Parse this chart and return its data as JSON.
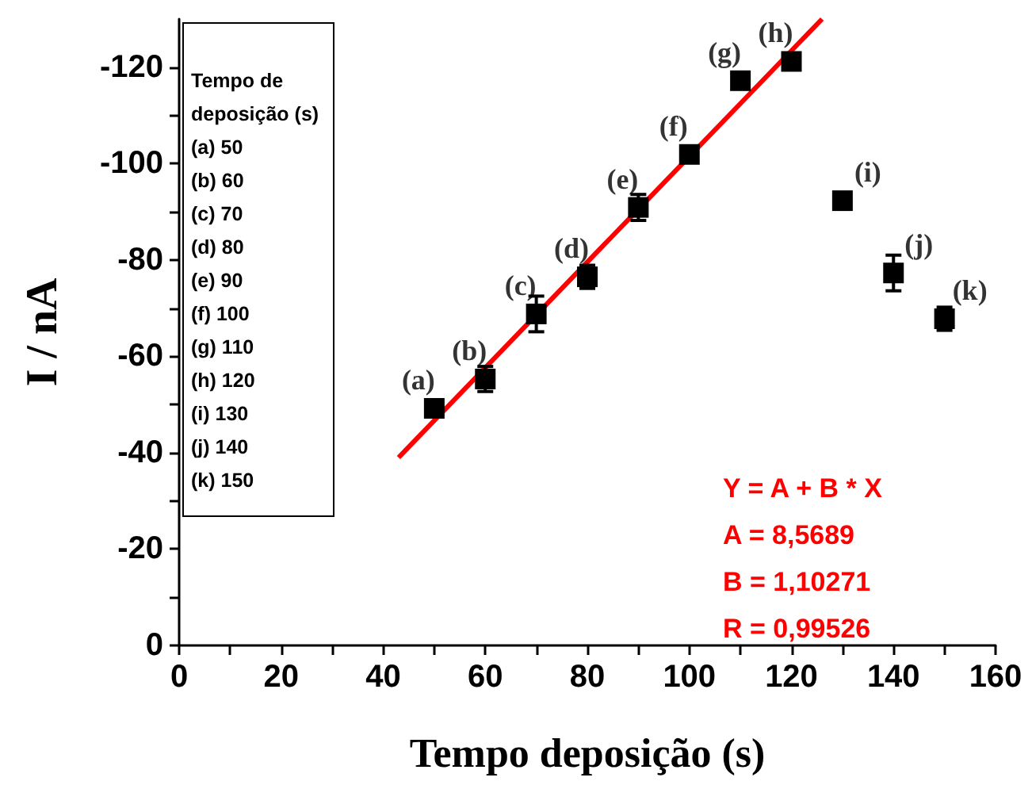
{
  "chart_data": {
    "type": "scatter",
    "xlabel": "Tempo deposição (s)",
    "ylabel": "I / nA",
    "xlim": [
      0,
      160
    ],
    "xticks": [
      0,
      {
        "value": 10,
        "label": null
      },
      20,
      {
        "value": 30,
        "label": null
      },
      40,
      {
        "value": 50,
        "label": null
      },
      60,
      {
        "value": 70,
        "label": null
      },
      80,
      {
        "value": 90,
        "label": null
      },
      100,
      {
        "value": 110,
        "label": null
      },
      120,
      {
        "value": 130,
        "label": null
      },
      140,
      {
        "value": 150,
        "label": null
      },
      160
    ],
    "ylim": [
      0,
      -130
    ],
    "yticks": [
      0,
      {
        "value": -10,
        "label": null
      },
      -20,
      {
        "value": -30,
        "label": null
      },
      -40,
      {
        "value": -50,
        "label": null
      },
      -60,
      {
        "value": -70,
        "label": null
      },
      -80,
      {
        "value": -90,
        "label": null
      },
      -100,
      {
        "value": -110,
        "label": null
      },
      -120
    ],
    "x": [
      50,
      60,
      70,
      80,
      90,
      100,
      110,
      120,
      130,
      140,
      150
    ],
    "grid": false,
    "series": [
      {
        "color": "#000000",
        "marker": "square",
        "values": [
          -49.2,
          -55.3,
          -68.8,
          -76.5,
          -90.9,
          -101.9,
          -117.2,
          -121.2,
          -92.3,
          -77.3,
          -67.8
        ],
        "errors": [
          1,
          2.6,
          3.7,
          2.4,
          2.7,
          1,
          1,
          1,
          1.5,
          3.7,
          2.4
        ]
      },
      {
        "type": "line",
        "color": "#ff0000",
        "marker": "none",
        "x": [
          43,
          126
        ],
        "values": [
          -39,
          -130
        ]
      }
    ],
    "annotations": [
      "Tempo de\ndeposição (s)\n(a) 50\n(b) 60\n(c) 70\n(d) 80\n(e) 90\n(f) 100\n(g) 110\n(h) 120\n(i) 130\n(j) 140\n(k) 150",
      "Y = A + B * X\nA = 8,5689\nB = 1,10271\nR = 0,99526",
      {
        "text": "(a)",
        "x": 50,
        "y": -49.2
      },
      {
        "text": "(b)",
        "x": 60,
        "y": -55.3
      },
      {
        "text": "(c)",
        "x": 70,
        "y": -68.8
      },
      {
        "text": "(d)",
        "x": 80,
        "y": -76.5
      },
      {
        "text": "(e)",
        "x": 90,
        "y": -90.9
      },
      {
        "text": "(f)",
        "x": 100,
        "y": -101.9
      },
      {
        "text": "(g)",
        "x": 110,
        "y": -117.2
      },
      {
        "text": "(h)",
        "x": 120,
        "y": -121.2
      },
      {
        "text": "(i)",
        "x": 130,
        "y": -92.3
      },
      {
        "text": "(j)",
        "x": 140,
        "y": -77.3
      },
      {
        "text": "(k)",
        "x": 150,
        "y": -67.8
      }
    ]
  }
}
